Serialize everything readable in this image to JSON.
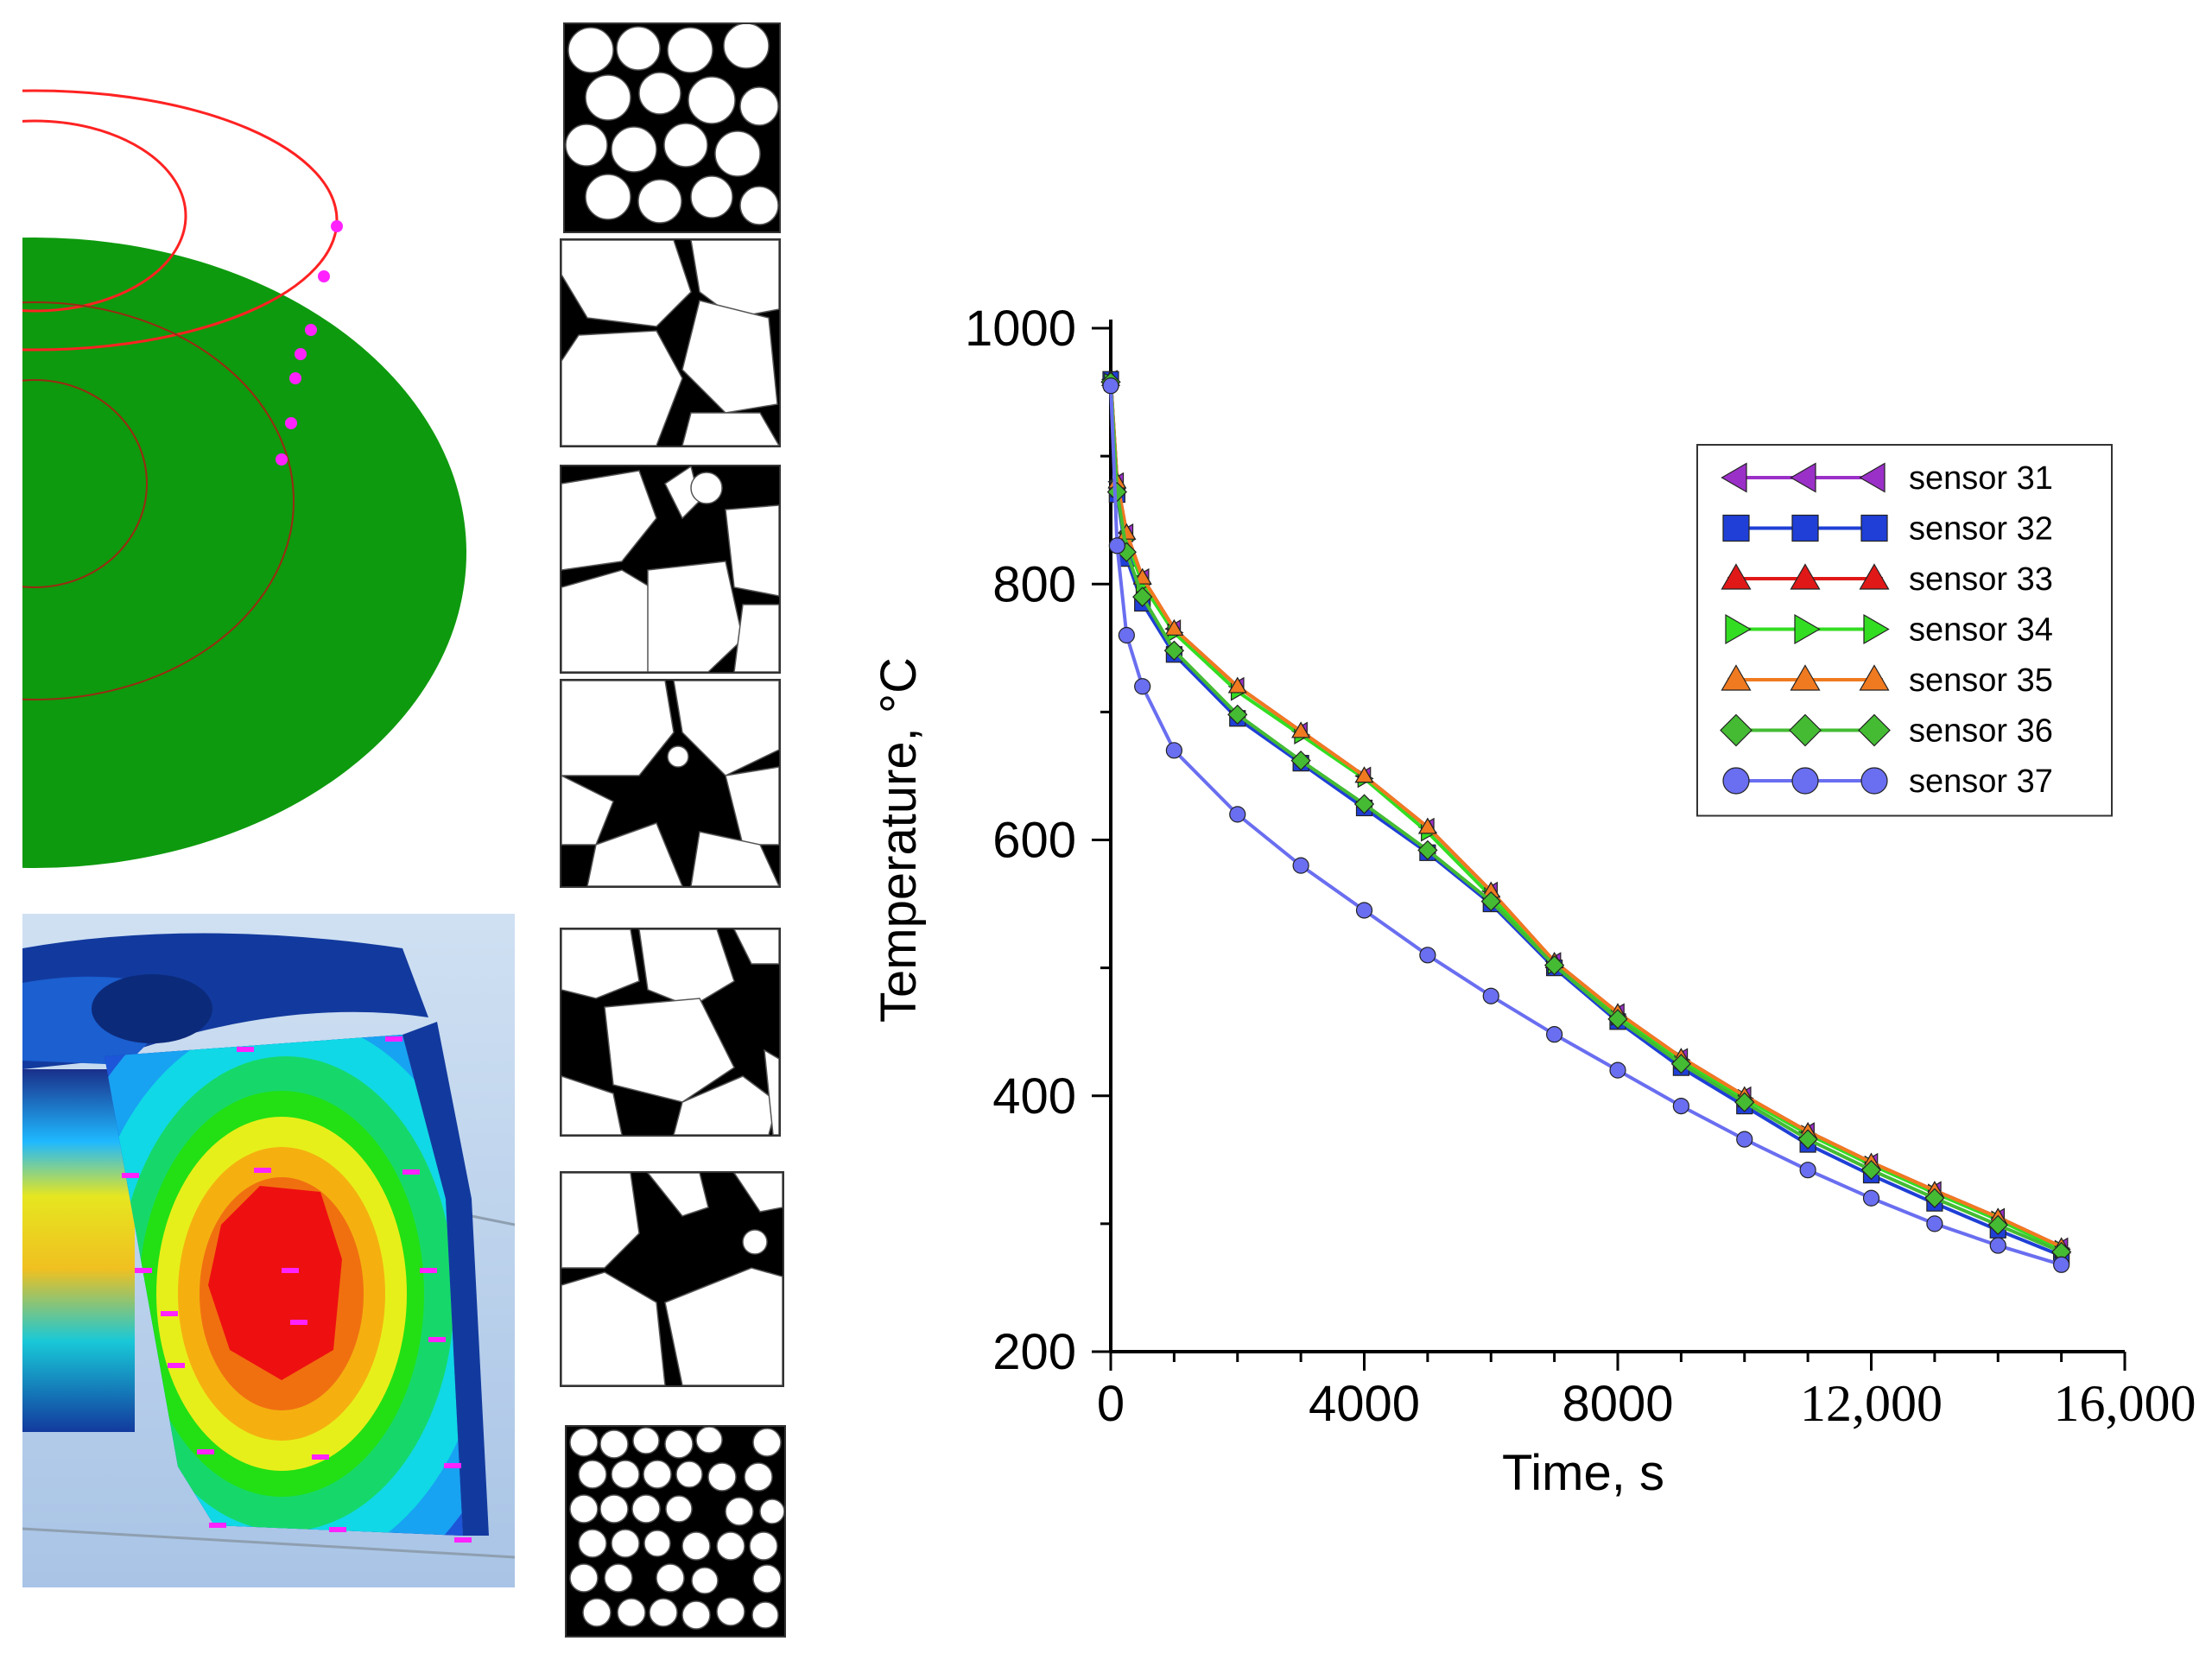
{
  "chart_data": {
    "type": "line",
    "xlabel": "Time, s",
    "ylabel": "Temperature, °C",
    "xlim": [
      0,
      16000
    ],
    "ylim": [
      200,
      1000
    ],
    "xticks": [
      {
        "value": 0,
        "label": "0"
      },
      {
        "value": 4000,
        "label": "4000"
      },
      {
        "value": 8000,
        "label": "8000"
      },
      {
        "value": 12000,
        "label": "12,000"
      },
      {
        "value": 16000,
        "label": "16,000"
      }
    ],
    "yticks": [
      {
        "value": 200,
        "label": "200"
      },
      {
        "value": 400,
        "label": "400"
      },
      {
        "value": 600,
        "label": "600"
      },
      {
        "value": 800,
        "label": "800"
      },
      {
        "value": 1000,
        "label": "1000"
      }
    ],
    "legend_position": "top-right",
    "series": [
      {
        "name": "sensor 31",
        "color": "#9b30c8",
        "marker": "triangle-left",
        "x": [
          0,
          100,
          250,
          500,
          1000,
          2000,
          3000,
          4000,
          5000,
          6000,
          7000,
          8000,
          9000,
          10000,
          11000,
          12000,
          13000,
          14000,
          15000
        ],
        "y": [
          960,
          880,
          840,
          805,
          765,
          720,
          685,
          650,
          610,
          560,
          505,
          465,
          430,
          400,
          372,
          348,
          326,
          305,
          282
        ]
      },
      {
        "name": "sensor 32",
        "color": "#1f3fd6",
        "marker": "square",
        "x": [
          0,
          100,
          250,
          500,
          1000,
          2000,
          3000,
          4000,
          5000,
          6000,
          7000,
          8000,
          9000,
          10000,
          11000,
          12000,
          13000,
          14000,
          15000
        ],
        "y": [
          960,
          870,
          820,
          785,
          745,
          695,
          660,
          625,
          590,
          550,
          500,
          458,
          422,
          392,
          362,
          338,
          316,
          295,
          275
        ]
      },
      {
        "name": "sensor 33",
        "color": "#e01818",
        "marker": "triangle",
        "x": [
          0,
          100,
          250,
          500,
          1000,
          2000,
          3000,
          4000,
          5000,
          6000,
          7000,
          8000,
          9000,
          10000,
          11000,
          12000,
          13000,
          14000,
          15000
        ],
        "y": [
          960,
          880,
          840,
          805,
          765,
          720,
          685,
          650,
          610,
          560,
          505,
          465,
          430,
          400,
          372,
          348,
          326,
          305,
          282
        ]
      },
      {
        "name": "sensor 34",
        "color": "#33dd22",
        "marker": "triangle-right",
        "x": [
          0,
          100,
          250,
          500,
          1000,
          2000,
          3000,
          4000,
          5000,
          6000,
          7000,
          8000,
          9000,
          10000,
          11000,
          12000,
          13000,
          14000,
          15000
        ],
        "y": [
          958,
          875,
          835,
          800,
          762,
          716,
          682,
          648,
          606,
          556,
          502,
          462,
          428,
          398,
          370,
          346,
          324,
          303,
          280
        ]
      },
      {
        "name": "sensor 35",
        "color": "#f07a20",
        "marker": "triangle",
        "x": [
          0,
          100,
          250,
          500,
          1000,
          2000,
          3000,
          4000,
          5000,
          6000,
          7000,
          8000,
          9000,
          10000,
          11000,
          12000,
          13000,
          14000,
          15000
        ],
        "y": [
          960,
          880,
          840,
          805,
          765,
          720,
          685,
          650,
          610,
          560,
          505,
          465,
          430,
          400,
          372,
          348,
          326,
          305,
          282
        ]
      },
      {
        "name": "sensor 36",
        "color": "#44bb33",
        "marker": "diamond",
        "x": [
          0,
          100,
          250,
          500,
          1000,
          2000,
          3000,
          4000,
          5000,
          6000,
          7000,
          8000,
          9000,
          10000,
          11000,
          12000,
          13000,
          14000,
          15000
        ],
        "y": [
          958,
          872,
          825,
          790,
          748,
          698,
          662,
          628,
          592,
          552,
          502,
          460,
          425,
          395,
          366,
          342,
          320,
          299,
          278
        ]
      },
      {
        "name": "sensor 37",
        "color": "#6a6ef0",
        "marker": "circle",
        "x": [
          0,
          100,
          250,
          500,
          1000,
          2000,
          3000,
          4000,
          5000,
          6000,
          7000,
          8000,
          9000,
          10000,
          11000,
          12000,
          13000,
          14000,
          15000
        ],
        "y": [
          955,
          830,
          760,
          720,
          670,
          620,
          580,
          545,
          510,
          478,
          448,
          420,
          392,
          366,
          342,
          320,
          300,
          283,
          268
        ]
      }
    ]
  }
}
